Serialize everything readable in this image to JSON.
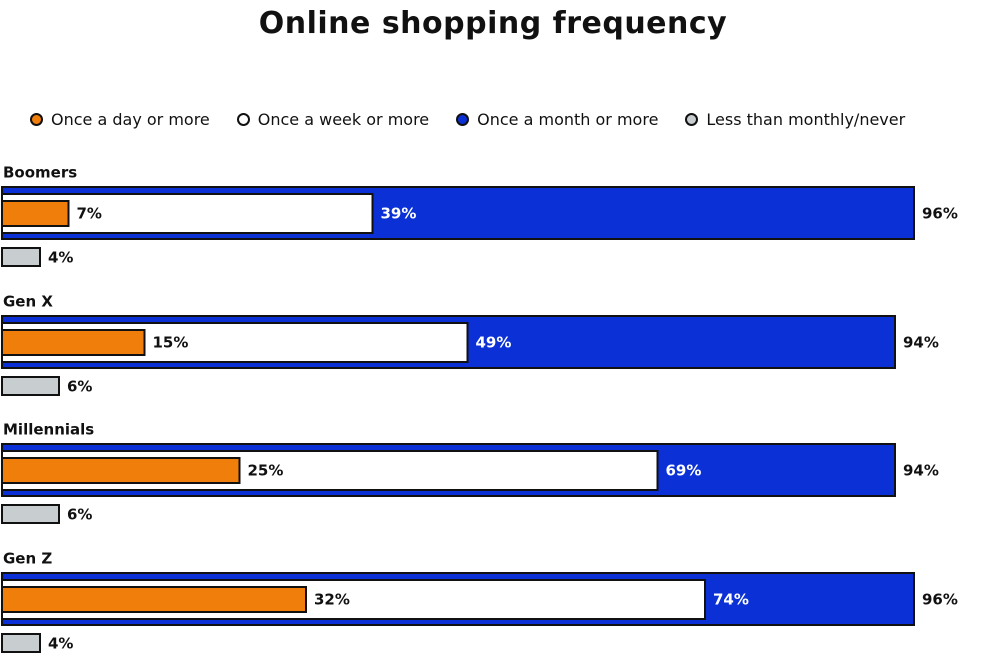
{
  "chart_data": {
    "type": "bar",
    "title": "Online shopping frequency",
    "categories": [
      "Boomers",
      "Gen X",
      "Millennials",
      "Gen Z"
    ],
    "series": [
      {
        "name": "Once a day or more",
        "color": "#f07e0a",
        "values": [
          7,
          15,
          25,
          32
        ],
        "labels": [
          "7%",
          "15%",
          "25%",
          "32%"
        ]
      },
      {
        "name": "Once a week or more",
        "color": "#ffffff",
        "values": [
          39,
          49,
          69,
          74
        ],
        "labels": [
          "39%",
          "49%",
          "69%",
          "74%"
        ]
      },
      {
        "name": "Once a month or more",
        "color": "#0a30d6",
        "values": [
          96,
          94,
          94,
          96
        ],
        "labels": [
          "96%",
          "94%",
          "94%",
          "96%"
        ]
      },
      {
        "name": "Less than monthly/never",
        "color": "#c8cdd0",
        "values": [
          4,
          6,
          6,
          4
        ],
        "labels": [
          "4%",
          "6%",
          "6%",
          "4%"
        ]
      }
    ],
    "xlim": [
      0,
      100
    ],
    "legend_position": "top",
    "grid": false
  }
}
